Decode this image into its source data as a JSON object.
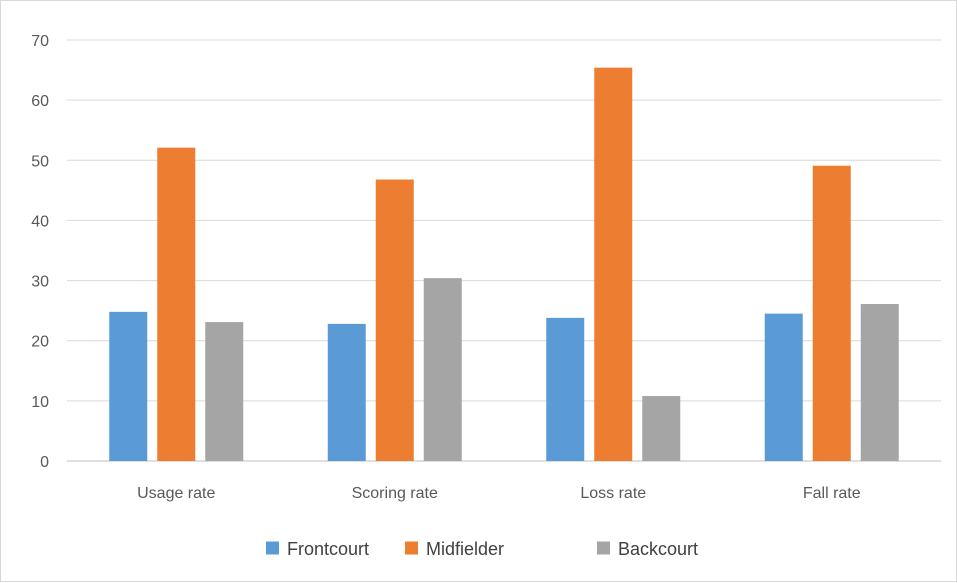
{
  "chart_data": {
    "type": "bar",
    "title": "",
    "xlabel": "",
    "ylabel": "",
    "categories": [
      "Usage rate",
      "Scoring rate",
      "Loss rate",
      "Fall rate"
    ],
    "series": [
      {
        "name": "Frontcourt",
        "color": "#5b9bd5",
        "values": [
          24.8,
          22.8,
          23.8,
          24.5
        ]
      },
      {
        "name": "Midfielder",
        "color": "#ed7d31",
        "values": [
          52.1,
          46.8,
          65.4,
          49.1
        ]
      },
      {
        "name": "Backcourt",
        "color": "#a5a5a5",
        "values": [
          23.1,
          30.4,
          10.8,
          26.1
        ]
      }
    ],
    "ylim": [
      0,
      70
    ],
    "yticks": [
      0,
      10,
      20,
      30,
      40,
      50,
      60,
      70
    ],
    "grid": true,
    "legend_position": "bottom"
  }
}
